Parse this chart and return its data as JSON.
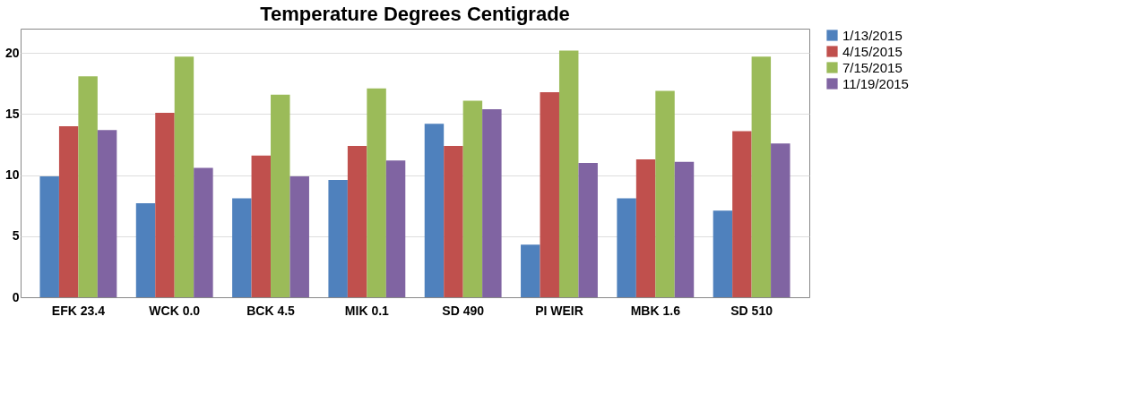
{
  "chart_data": {
    "type": "bar",
    "title": "Temperature Degrees Centigrade",
    "categories": [
      "EFK 23.4",
      "WCK 0.0",
      "BCK 4.5",
      "MIK 0.1",
      "SD 490",
      "PI WEIR",
      "MBK 1.6",
      "SD 510"
    ],
    "series": [
      {
        "name": "1/13/2015",
        "color": "#4f81bd",
        "values": [
          9.9,
          7.7,
          8.1,
          9.6,
          14.2,
          4.3,
          8.1,
          7.1
        ]
      },
      {
        "name": "4/15/2015",
        "color": "#c0504d",
        "values": [
          14.0,
          15.1,
          11.6,
          12.4,
          12.4,
          16.8,
          11.3,
          13.6
        ]
      },
      {
        "name": "7/15/2015",
        "color": "#9bbb59",
        "values": [
          18.1,
          19.7,
          16.6,
          17.1,
          16.1,
          20.2,
          16.9,
          19.7
        ]
      },
      {
        "name": "11/19/2015",
        "color": "#8064a2",
        "values": [
          13.7,
          10.6,
          9.9,
          11.2,
          15.4,
          11.0,
          11.1,
          12.6
        ]
      }
    ],
    "ylim": [
      0,
      22
    ],
    "yticks": [
      0,
      5,
      10,
      15,
      20
    ],
    "grid": "y",
    "legend": "right"
  }
}
